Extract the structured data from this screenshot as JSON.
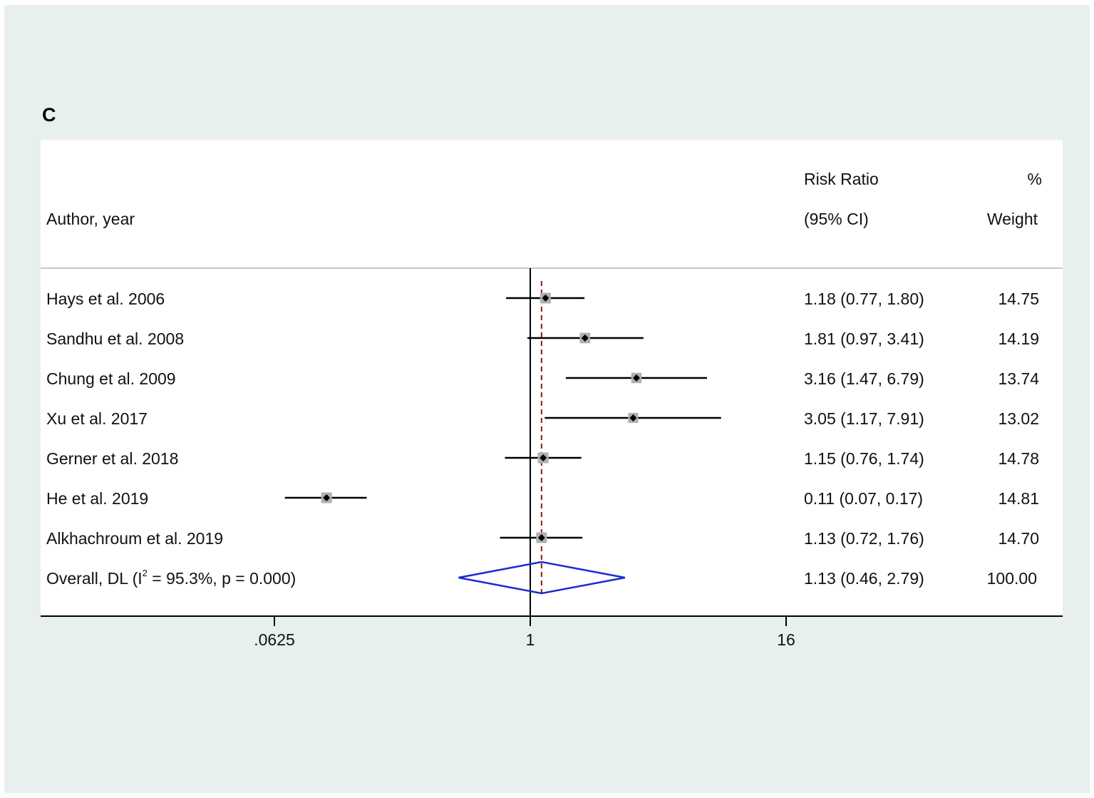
{
  "panel_label": "C",
  "chart_data": {
    "type": "forest",
    "header": {
      "study_col": "Author, year",
      "effect_col_line1": "Risk Ratio",
      "effect_col_line2": "(95% CI)",
      "weight_col_line1": "%",
      "weight_col_line2": "Weight"
    },
    "studies": [
      {
        "label": "Hays et al. 2006",
        "rr": 1.18,
        "lo": 0.77,
        "hi": 1.8,
        "ci_text": "1.18 (0.77, 1.80)",
        "weight_text": "14.75",
        "weight": 14.75
      },
      {
        "label": "Sandhu et al. 2008",
        "rr": 1.81,
        "lo": 0.97,
        "hi": 3.41,
        "ci_text": "1.81 (0.97, 3.41)",
        "weight_text": "14.19",
        "weight": 14.19
      },
      {
        "label": "Chung et al. 2009",
        "rr": 3.16,
        "lo": 1.47,
        "hi": 6.79,
        "ci_text": "3.16 (1.47, 6.79)",
        "weight_text": "13.74",
        "weight": 13.74
      },
      {
        "label": "Xu et al. 2017",
        "rr": 3.05,
        "lo": 1.17,
        "hi": 7.91,
        "ci_text": "3.05 (1.17, 7.91)",
        "weight_text": "13.02",
        "weight": 13.02
      },
      {
        "label": "Gerner et al. 2018",
        "rr": 1.15,
        "lo": 0.76,
        "hi": 1.74,
        "ci_text": "1.15 (0.76, 1.74)",
        "weight_text": "14.78",
        "weight": 14.78
      },
      {
        "label": "He et al. 2019",
        "rr": 0.11,
        "lo": 0.07,
        "hi": 0.17,
        "ci_text": "0.11 (0.07, 0.17)",
        "weight_text": "14.81",
        "weight": 14.81
      },
      {
        "label": "Alkhachroum et al. 2019",
        "rr": 1.13,
        "lo": 0.72,
        "hi": 1.76,
        "ci_text": "1.13 (0.72, 1.76)",
        "weight_text": "14.70",
        "weight": 14.7
      }
    ],
    "overall": {
      "label_prefix": "Overall, DL (I",
      "label_sup": "2",
      "label_suffix": " = 95.3%, p = 0.000)",
      "rr": 1.13,
      "lo": 0.46,
      "hi": 2.79,
      "ci_text": "1.13 (0.46, 2.79)",
      "weight_text": "100.00"
    },
    "x_scale": "log",
    "x_ticks": [
      0.0625,
      1,
      16
    ],
    "x_tick_labels": [
      ".0625",
      "1",
      "16"
    ],
    "null_value": 1,
    "colors": {
      "frame_bg": "#e8f0ef",
      "plot_bg": "#ffffff",
      "ci_line": "#000000",
      "point_box": "#b0b0b0",
      "diamond": "#1d2bd0",
      "overall_line": "#8b1a1a"
    }
  }
}
